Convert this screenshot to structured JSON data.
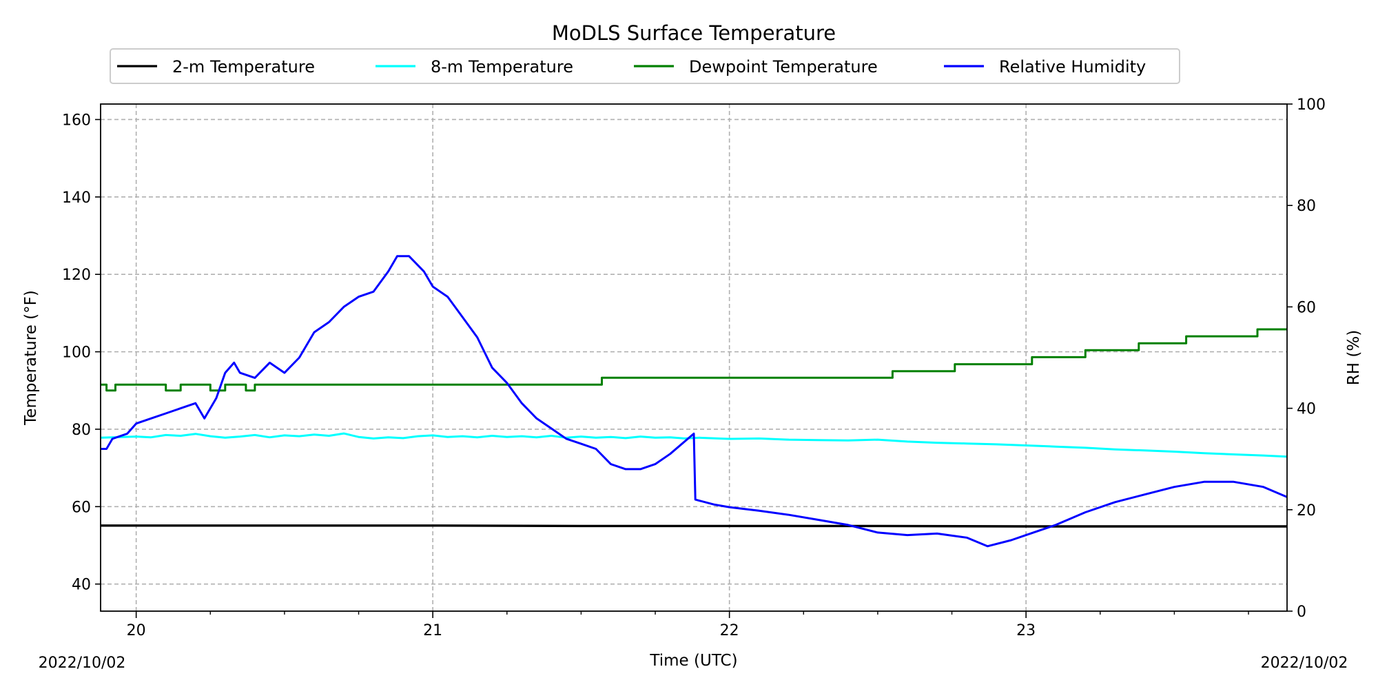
{
  "chart_data": {
    "type": "line",
    "title": "MoDLS Surface Temperature",
    "xlabel": "Time (UTC)",
    "ylabel": "Temperature ($^\\circ$F)",
    "ylabel_display": "Temperature (°F)",
    "y2label": "RH (%)",
    "x_unit": "day of month (2022/10)",
    "xlim": [
      19.88,
      23.88
    ],
    "ylim": [
      33,
      164
    ],
    "y2lim": [
      0,
      100
    ],
    "x_ticks": [
      20,
      21,
      22,
      23
    ],
    "x_tick_labels": [
      "20",
      "21",
      "22",
      "23"
    ],
    "y_ticks": [
      40,
      60,
      80,
      100,
      120,
      140,
      160
    ],
    "y_tick_labels": [
      "40",
      "60",
      "80",
      "100",
      "120",
      "140",
      "160"
    ],
    "y2_ticks": [
      0,
      20,
      40,
      60,
      80,
      100
    ],
    "y2_tick_labels": [
      "0",
      "20",
      "40",
      "60",
      "80",
      "100"
    ],
    "date_left": "2022/10/02",
    "date_right": "2022/10/02",
    "grid": true,
    "legend_placement": "top-center",
    "series": [
      {
        "name": "2-m Temperature",
        "color": "#000000",
        "axis": "left",
        "step": false,
        "points": [
          [
            19.88,
            55.1
          ],
          [
            20.5,
            55.1
          ],
          [
            21.0,
            55.1
          ],
          [
            21.5,
            55.0
          ],
          [
            22.0,
            55.0
          ],
          [
            22.5,
            55.0
          ],
          [
            23.0,
            54.9
          ],
          [
            23.5,
            54.9
          ],
          [
            23.88,
            54.9
          ]
        ]
      },
      {
        "name": "8-m Temperature",
        "color": "#00ffff",
        "axis": "left",
        "step": false,
        "points": [
          [
            19.88,
            77.8
          ],
          [
            19.92,
            77.9
          ],
          [
            20.0,
            78.1
          ],
          [
            20.05,
            77.9
          ],
          [
            20.1,
            78.5
          ],
          [
            20.15,
            78.3
          ],
          [
            20.2,
            78.8
          ],
          [
            20.25,
            78.2
          ],
          [
            20.3,
            77.8
          ],
          [
            20.35,
            78.1
          ],
          [
            20.4,
            78.5
          ],
          [
            20.45,
            77.9
          ],
          [
            20.5,
            78.4
          ],
          [
            20.55,
            78.2
          ],
          [
            20.6,
            78.6
          ],
          [
            20.65,
            78.3
          ],
          [
            20.7,
            78.9
          ],
          [
            20.75,
            78.0
          ],
          [
            20.8,
            77.6
          ],
          [
            20.85,
            77.9
          ],
          [
            20.9,
            77.7
          ],
          [
            20.95,
            78.2
          ],
          [
            21.0,
            78.4
          ],
          [
            21.05,
            78.0
          ],
          [
            21.1,
            78.2
          ],
          [
            21.15,
            77.9
          ],
          [
            21.2,
            78.3
          ],
          [
            21.25,
            78.0
          ],
          [
            21.3,
            78.2
          ],
          [
            21.35,
            77.9
          ],
          [
            21.4,
            78.3
          ],
          [
            21.45,
            77.8
          ],
          [
            21.5,
            78.1
          ],
          [
            21.55,
            77.8
          ],
          [
            21.6,
            78.0
          ],
          [
            21.65,
            77.7
          ],
          [
            21.7,
            78.1
          ],
          [
            21.75,
            77.8
          ],
          [
            21.8,
            77.9
          ],
          [
            21.85,
            77.6
          ],
          [
            21.9,
            77.8
          ],
          [
            22.0,
            77.5
          ],
          [
            22.1,
            77.6
          ],
          [
            22.2,
            77.3
          ],
          [
            22.3,
            77.2
          ],
          [
            22.4,
            77.1
          ],
          [
            22.5,
            77.3
          ],
          [
            22.6,
            76.8
          ],
          [
            22.7,
            76.5
          ],
          [
            22.8,
            76.3
          ],
          [
            22.9,
            76.1
          ],
          [
            23.0,
            75.8
          ],
          [
            23.1,
            75.5
          ],
          [
            23.2,
            75.2
          ],
          [
            23.3,
            74.8
          ],
          [
            23.4,
            74.5
          ],
          [
            23.5,
            74.2
          ],
          [
            23.6,
            73.8
          ],
          [
            23.7,
            73.5
          ],
          [
            23.8,
            73.2
          ],
          [
            23.88,
            72.9
          ]
        ]
      },
      {
        "name": "Dewpoint Temperature",
        "color": "#008000",
        "axis": "left",
        "step": true,
        "points": [
          [
            19.88,
            91.5
          ],
          [
            19.9,
            90.0
          ],
          [
            19.93,
            91.5
          ],
          [
            20.0,
            91.5
          ],
          [
            20.1,
            90.0
          ],
          [
            20.15,
            91.5
          ],
          [
            20.2,
            91.5
          ],
          [
            20.25,
            90.0
          ],
          [
            20.3,
            91.5
          ],
          [
            20.37,
            90.0
          ],
          [
            20.4,
            91.5
          ],
          [
            20.6,
            91.5
          ],
          [
            20.7,
            91.5
          ],
          [
            21.1,
            91.5
          ],
          [
            21.15,
            91.5
          ],
          [
            21.4,
            91.5
          ],
          [
            21.57,
            93.3
          ],
          [
            22.2,
            93.3
          ],
          [
            22.3,
            93.3
          ],
          [
            22.55,
            95.0
          ],
          [
            22.75,
            95.0
          ],
          [
            22.76,
            96.8
          ],
          [
            23.0,
            96.8
          ],
          [
            23.02,
            98.6
          ],
          [
            23.18,
            98.6
          ],
          [
            23.2,
            100.4
          ],
          [
            23.37,
            100.4
          ],
          [
            23.38,
            102.2
          ],
          [
            23.53,
            102.2
          ],
          [
            23.54,
            104.0
          ],
          [
            23.76,
            104.0
          ],
          [
            23.78,
            105.8
          ],
          [
            23.88,
            105.8
          ]
        ]
      },
      {
        "name": "Relative Humidity",
        "color": "#0000ff",
        "axis": "right",
        "step": false,
        "points": [
          [
            19.88,
            32
          ],
          [
            19.9,
            32
          ],
          [
            19.92,
            34
          ],
          [
            19.97,
            35
          ],
          [
            20.0,
            37
          ],
          [
            20.05,
            38
          ],
          [
            20.1,
            39
          ],
          [
            20.15,
            40
          ],
          [
            20.2,
            41
          ],
          [
            20.23,
            38
          ],
          [
            20.27,
            42
          ],
          [
            20.3,
            47
          ],
          [
            20.33,
            49
          ],
          [
            20.35,
            47
          ],
          [
            20.4,
            46
          ],
          [
            20.45,
            49
          ],
          [
            20.5,
            47
          ],
          [
            20.55,
            50
          ],
          [
            20.6,
            55
          ],
          [
            20.65,
            57
          ],
          [
            20.7,
            60
          ],
          [
            20.75,
            62
          ],
          [
            20.8,
            63
          ],
          [
            20.85,
            67
          ],
          [
            20.88,
            70
          ],
          [
            20.92,
            70
          ],
          [
            20.97,
            67
          ],
          [
            21.0,
            64
          ],
          [
            21.05,
            62
          ],
          [
            21.1,
            58
          ],
          [
            21.15,
            54
          ],
          [
            21.2,
            48
          ],
          [
            21.25,
            45
          ],
          [
            21.3,
            41
          ],
          [
            21.35,
            38
          ],
          [
            21.4,
            36
          ],
          [
            21.45,
            34
          ],
          [
            21.5,
            33
          ],
          [
            21.55,
            32
          ],
          [
            21.6,
            29
          ],
          [
            21.65,
            28
          ],
          [
            21.7,
            28
          ],
          [
            21.75,
            29
          ],
          [
            21.8,
            31
          ],
          [
            21.88,
            35
          ],
          [
            21.885,
            22
          ],
          [
            21.95,
            21
          ],
          [
            22.0,
            20.5
          ],
          [
            22.1,
            19.8
          ],
          [
            22.2,
            19
          ],
          [
            22.3,
            18
          ],
          [
            22.4,
            17
          ],
          [
            22.5,
            15.5
          ],
          [
            22.6,
            15
          ],
          [
            22.7,
            15.3
          ],
          [
            22.8,
            14.5
          ],
          [
            22.87,
            12.8
          ],
          [
            22.95,
            14
          ],
          [
            23.0,
            15
          ],
          [
            23.1,
            17
          ],
          [
            23.2,
            19.5
          ],
          [
            23.3,
            21.5
          ],
          [
            23.4,
            23
          ],
          [
            23.5,
            24.5
          ],
          [
            23.6,
            25.5
          ],
          [
            23.7,
            25.5
          ],
          [
            23.8,
            24.5
          ],
          [
            23.88,
            22.5
          ]
        ]
      }
    ]
  }
}
